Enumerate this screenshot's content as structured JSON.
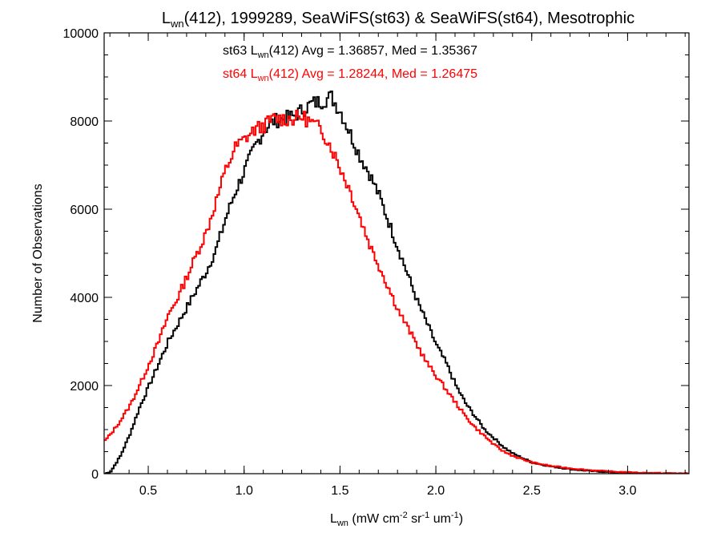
{
  "chart_data": {
    "type": "line",
    "title": {
      "var": "L",
      "sub": "wn",
      "rest": "(412), 1999289, SeaWiFS(st63) & SeaWiFS(st64), Mesotrophic"
    },
    "xlabel": {
      "var": "L",
      "sub": "wn",
      "p1": " (mW cm",
      "sup1": "-2",
      "p2": " sr",
      "sup2": "-1",
      "p3": " um",
      "sup3": "-1",
      "p4": ")"
    },
    "ylabel": "Number of Observations",
    "xlim": [
      0.27,
      3.32
    ],
    "ylim": [
      0,
      10000
    ],
    "x_ticks": [
      0.5,
      1.0,
      1.5,
      2.0,
      2.5,
      3.0
    ],
    "x_tick_labels": [
      "0.5",
      "1.0",
      "1.5",
      "2.0",
      "2.5",
      "3.0"
    ],
    "y_ticks": [
      0,
      2000,
      4000,
      6000,
      8000,
      10000
    ],
    "y_tick_labels": [
      "0",
      "2000",
      "4000",
      "6000",
      "8000",
      "10000"
    ],
    "x_minor_step": 0.1,
    "y_minor_step": 500,
    "grid": false,
    "series": [
      {
        "name": "st63",
        "color": "#000000",
        "annotation": {
          "pre": "st63 L",
          "sub": "wn",
          "post": "(412) Avg = 1.36857, Med = 1.35367"
        },
        "points": [
          [
            0.27,
            0
          ],
          [
            0.3,
            50
          ],
          [
            0.35,
            400
          ],
          [
            0.4,
            900
          ],
          [
            0.45,
            1500
          ],
          [
            0.5,
            2000
          ],
          [
            0.55,
            2500
          ],
          [
            0.6,
            3000
          ],
          [
            0.65,
            3400
          ],
          [
            0.7,
            3800
          ],
          [
            0.75,
            4200
          ],
          [
            0.8,
            4600
          ],
          [
            0.85,
            5100
          ],
          [
            0.9,
            5800
          ],
          [
            0.95,
            6400
          ],
          [
            1.0,
            6900
          ],
          [
            1.05,
            7400
          ],
          [
            1.1,
            7800
          ],
          [
            1.15,
            8000
          ],
          [
            1.2,
            8050
          ],
          [
            1.25,
            8100
          ],
          [
            1.3,
            8250
          ],
          [
            1.35,
            8400
          ],
          [
            1.4,
            8450
          ],
          [
            1.45,
            8550
          ],
          [
            1.5,
            8200
          ],
          [
            1.55,
            7700
          ],
          [
            1.6,
            7200
          ],
          [
            1.65,
            6800
          ],
          [
            1.7,
            6300
          ],
          [
            1.75,
            5700
          ],
          [
            1.8,
            5100
          ],
          [
            1.85,
            4500
          ],
          [
            1.9,
            3900
          ],
          [
            1.95,
            3400
          ],
          [
            2.0,
            2900
          ],
          [
            2.05,
            2500
          ],
          [
            2.1,
            2000
          ],
          [
            2.15,
            1600
          ],
          [
            2.2,
            1300
          ],
          [
            2.25,
            1000
          ],
          [
            2.3,
            800
          ],
          [
            2.35,
            600
          ],
          [
            2.4,
            450
          ],
          [
            2.45,
            350
          ],
          [
            2.5,
            250
          ],
          [
            2.6,
            160
          ],
          [
            2.7,
            100
          ],
          [
            2.8,
            60
          ],
          [
            2.9,
            35
          ],
          [
            3.0,
            20
          ],
          [
            3.1,
            10
          ],
          [
            3.2,
            5
          ],
          [
            3.32,
            2
          ]
        ]
      },
      {
        "name": "st64",
        "color": "#ff0000",
        "annotation": {
          "pre": "st64 L",
          "sub": "wn",
          "post": "(412) Avg = 1.28244, Med = 1.26475"
        },
        "points": [
          [
            0.27,
            750
          ],
          [
            0.3,
            900
          ],
          [
            0.35,
            1200
          ],
          [
            0.4,
            1550
          ],
          [
            0.45,
            2000
          ],
          [
            0.5,
            2500
          ],
          [
            0.55,
            3000
          ],
          [
            0.6,
            3600
          ],
          [
            0.65,
            4000
          ],
          [
            0.7,
            4500
          ],
          [
            0.75,
            5000
          ],
          [
            0.8,
            5500
          ],
          [
            0.85,
            6200
          ],
          [
            0.9,
            6900
          ],
          [
            0.95,
            7400
          ],
          [
            1.0,
            7600
          ],
          [
            1.05,
            7800
          ],
          [
            1.1,
            7900
          ],
          [
            1.15,
            8050
          ],
          [
            1.2,
            8050
          ],
          [
            1.25,
            8050
          ],
          [
            1.3,
            8100
          ],
          [
            1.35,
            7950
          ],
          [
            1.4,
            7800
          ],
          [
            1.45,
            7400
          ],
          [
            1.5,
            6900
          ],
          [
            1.55,
            6400
          ],
          [
            1.6,
            5800
          ],
          [
            1.65,
            5200
          ],
          [
            1.7,
            4700
          ],
          [
            1.75,
            4200
          ],
          [
            1.8,
            3700
          ],
          [
            1.85,
            3300
          ],
          [
            1.9,
            2900
          ],
          [
            1.95,
            2500
          ],
          [
            2.0,
            2200
          ],
          [
            2.05,
            1900
          ],
          [
            2.1,
            1600
          ],
          [
            2.15,
            1300
          ],
          [
            2.2,
            1050
          ],
          [
            2.25,
            850
          ],
          [
            2.3,
            650
          ],
          [
            2.35,
            500
          ],
          [
            2.4,
            400
          ],
          [
            2.45,
            320
          ],
          [
            2.5,
            250
          ],
          [
            2.6,
            170
          ],
          [
            2.7,
            120
          ],
          [
            2.8,
            80
          ],
          [
            2.9,
            50
          ],
          [
            3.0,
            30
          ],
          [
            3.1,
            18
          ],
          [
            3.2,
            10
          ],
          [
            3.32,
            5
          ]
        ]
      }
    ]
  }
}
